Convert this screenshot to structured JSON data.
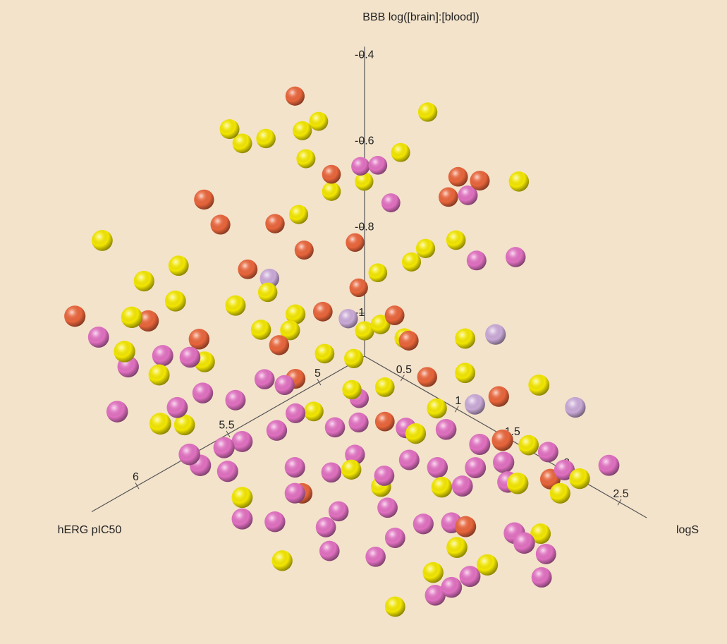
{
  "chart_data": {
    "type": "scatter3d",
    "xlabel": "hERG pIC50",
    "ylabel": "logS",
    "zlabel": "BBB log([brain]:[blood])",
    "xlim": [
      4.75,
      6.25
    ],
    "xticks": [
      5,
      5.5,
      6
    ],
    "ylim": [
      0.15,
      2.75
    ],
    "yticks": [
      0.5,
      1,
      1.5,
      2,
      2.5
    ],
    "zlim": [
      -1.1,
      -0.38
    ],
    "zticks": [
      -0.4,
      -0.6,
      -0.8,
      -1
    ],
    "series": [
      {
        "color": "#f2e600",
        "x": [
          5.54,
          5.47,
          5.34,
          5.14,
          5.05,
          4.85,
          5.12,
          4.85,
          4.8,
          4.98,
          4.85,
          6.24,
          5.16,
          4.85,
          4.85,
          4.85,
          4.85,
          5.82,
          6.01,
          6.04,
          5.71,
          6.28,
          6.32,
          6.13,
          5.57,
          5.38,
          5.22,
          5.06,
          5.05,
          5.05,
          5.05,
          5.05,
          5.05,
          5.05,
          5.05,
          6.32,
          5.99,
          5.88,
          5.25,
          4.85,
          4.85,
          4.85,
          5.25,
          5.25,
          5.25,
          5.87,
          5.65,
          5.25,
          5.25,
          5.25,
          5.25,
          4.85,
          5.27,
          5.28,
          5.41,
          5.33,
          5.0,
          5.07
        ],
        "y": [
          0.23,
          0.23,
          0.23,
          0.23,
          0.23,
          0.9,
          0.23,
          0.65,
          0.23,
          0.23,
          1.74,
          0.23,
          0.23,
          0.88,
          1.16,
          0.75,
          0.44,
          0.23,
          0.23,
          0.57,
          0.57,
          0.57,
          0.57,
          0.57,
          0.57,
          0.57,
          0.57,
          0.57,
          0.8,
          1.02,
          1.58,
          1.58,
          0.84,
          1.32,
          2.26,
          0.9,
          0.57,
          0.57,
          1.46,
          1.83,
          2.12,
          2.3,
          2.4,
          1.7,
          1.14,
          0.9,
          0.9,
          1.27,
          1.62,
          2.12,
          1.84,
          1.94,
          0.9,
          0.57,
          0.57,
          0.23,
          0.57,
          0.57
        ],
        "z": [
          -0.37,
          -0.42,
          -0.44,
          -0.47,
          -0.47,
          -0.4,
          -0.54,
          -0.53,
          -0.67,
          -0.65,
          -0.44,
          -0.46,
          -0.66,
          -0.72,
          -0.66,
          -0.77,
          -0.84,
          -0.62,
          -0.61,
          -0.6,
          -0.69,
          -0.58,
          -0.65,
          -0.75,
          -0.78,
          -0.79,
          -0.92,
          -0.97,
          -0.86,
          -0.86,
          -0.78,
          -0.86,
          -1.0,
          -0.98,
          -0.79,
          -0.77,
          -0.9,
          -0.78,
          -0.97,
          -1.04,
          -1.11,
          -1.05,
          -0.95,
          -1.06,
          -1.14,
          -1.05,
          -1.25,
          -1.4,
          -1.27,
          -1.18,
          -1.18,
          -1.23,
          -1.13,
          -1.04,
          -0.82,
          -0.8,
          -0.92,
          -1.04
        ]
      },
      {
        "color": "#e8653b",
        "x": [
          5.18,
          4.98,
          4.85,
          4.85,
          4.85,
          5.68,
          5.59,
          5.29,
          5.13,
          4.85,
          5.44,
          4.83,
          6.39,
          6.19,
          5.23,
          5.05,
          5.91,
          5.47,
          5.38,
          5.05,
          5.05,
          5.05,
          5.25,
          5.25,
          5.54,
          5.05,
          4.85
        ],
        "y": [
          0.23,
          0.23,
          1.18,
          1.38,
          1.09,
          0.23,
          0.23,
          0.23,
          0.23,
          0.23,
          0.23,
          0.23,
          0.23,
          0.57,
          0.57,
          0.93,
          0.57,
          0.57,
          0.57,
          1.23,
          1.89,
          0.84,
          2.26,
          1.92,
          0.9,
          1.06,
          2.03
        ],
        "z": [
          -0.38,
          -0.61,
          -0.51,
          -0.49,
          -0.57,
          -0.5,
          -0.58,
          -0.65,
          -0.75,
          -0.8,
          -0.72,
          -0.91,
          -0.6,
          -0.61,
          -0.82,
          -0.82,
          -0.72,
          -0.84,
          -0.94,
          -0.92,
          -0.87,
          -1.08,
          -0.87,
          -1.12,
          -1.12,
          -0.86,
          -1.09
        ]
      },
      {
        "color": "#e070c0",
        "x": [
          4.82,
          4.85,
          4.85,
          4.85,
          4.85,
          4.85,
          6.26,
          6.3,
          6.11,
          5.96,
          6.36,
          6.03,
          5.89,
          5.71,
          5.55,
          5.44,
          6.16,
          6.1,
          5.97,
          5.87,
          5.68,
          5.38,
          5.36,
          5.23,
          5.25,
          5.25,
          5.25,
          5.25,
          4.85,
          4.85,
          4.85,
          5.95,
          5.58,
          5.38,
          5.25,
          5.25,
          5.25,
          5.25,
          5.25,
          5.25,
          5.25,
          5.58,
          5.34,
          5.25,
          5.25,
          5.25,
          5.87,
          5.69,
          5.41,
          5.39,
          5.25,
          5.25,
          5.25,
          5.25,
          5.25,
          5.25,
          5.25,
          4.85,
          4.85,
          5.03
        ],
        "y": [
          0.23,
          0.44,
          0.56,
          1.27,
          1.35,
          1.71,
          0.23,
          0.57,
          0.57,
          0.57,
          0.57,
          0.57,
          0.57,
          0.57,
          0.57,
          0.57,
          0.9,
          0.9,
          0.9,
          0.9,
          0.9,
          0.57,
          0.9,
          0.9,
          1.37,
          1.74,
          2.05,
          2.27,
          2.01,
          2.16,
          2.57,
          0.9,
          0.9,
          0.9,
          0.9,
          1.17,
          1.4,
          1.66,
          2.01,
          1.89,
          2.31,
          0.9,
          0.9,
          1.2,
          1.53,
          1.79,
          0.9,
          0.9,
          0.9,
          0.9,
          1.09,
          1.27,
          1.79,
          1.64,
          1.96,
          2.37,
          2.46,
          1.99,
          1.95,
          0.57
        ],
        "z": [
          -0.63,
          -0.59,
          -0.66,
          -0.54,
          -0.68,
          -0.62,
          -0.68,
          -0.69,
          -0.71,
          -0.75,
          -0.78,
          -0.85,
          -0.85,
          -0.91,
          -0.9,
          -0.94,
          -0.88,
          -0.92,
          -0.91,
          -0.92,
          -0.94,
          -1.02,
          -1.01,
          -1.03,
          -0.97,
          -0.92,
          -0.91,
          -0.92,
          -1.03,
          -1.05,
          -0.98,
          -0.97,
          -1.05,
          -1.11,
          -1.1,
          -1.11,
          -1.04,
          -1.02,
          -0.97,
          -1.03,
          -0.96,
          -1.11,
          -1.21,
          -1.18,
          -1.17,
          -1.13,
          -1.1,
          -1.15,
          -1.23,
          -1.29,
          -1.31,
          -1.24,
          -1.28,
          -1.32,
          -1.23,
          -1.07,
          -1.08,
          -1.27,
          -1.33,
          -1.07
        ]
      },
      {
        "color": "#c9a9d6",
        "x": [
          5.32,
          5.09,
          5.05,
          4.85,
          5.05
        ],
        "y": [
          0.23,
          0.57,
          1.86,
          2.26,
          1.67
        ],
        "z": [
          -0.77,
          -0.87,
          -0.73,
          -0.89,
          -0.92
        ]
      }
    ]
  }
}
